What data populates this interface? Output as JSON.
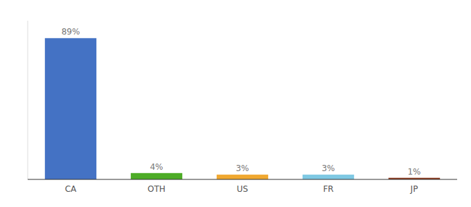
{
  "chart_data": {
    "type": "bar",
    "categories": [
      "CA",
      "OTH",
      "US",
      "FR",
      "JP"
    ],
    "values": [
      89,
      4,
      3,
      3,
      1
    ],
    "value_labels": [
      "89%",
      "4%",
      "3%",
      "3%",
      "1%"
    ],
    "colors": [
      "#4472c4",
      "#4dac26",
      "#f0a830",
      "#7ec8e3",
      "#8b3a1e"
    ],
    "ylim": [
      0,
      100
    ],
    "data_labels": true,
    "tick_labels": "x",
    "grid": false
  }
}
